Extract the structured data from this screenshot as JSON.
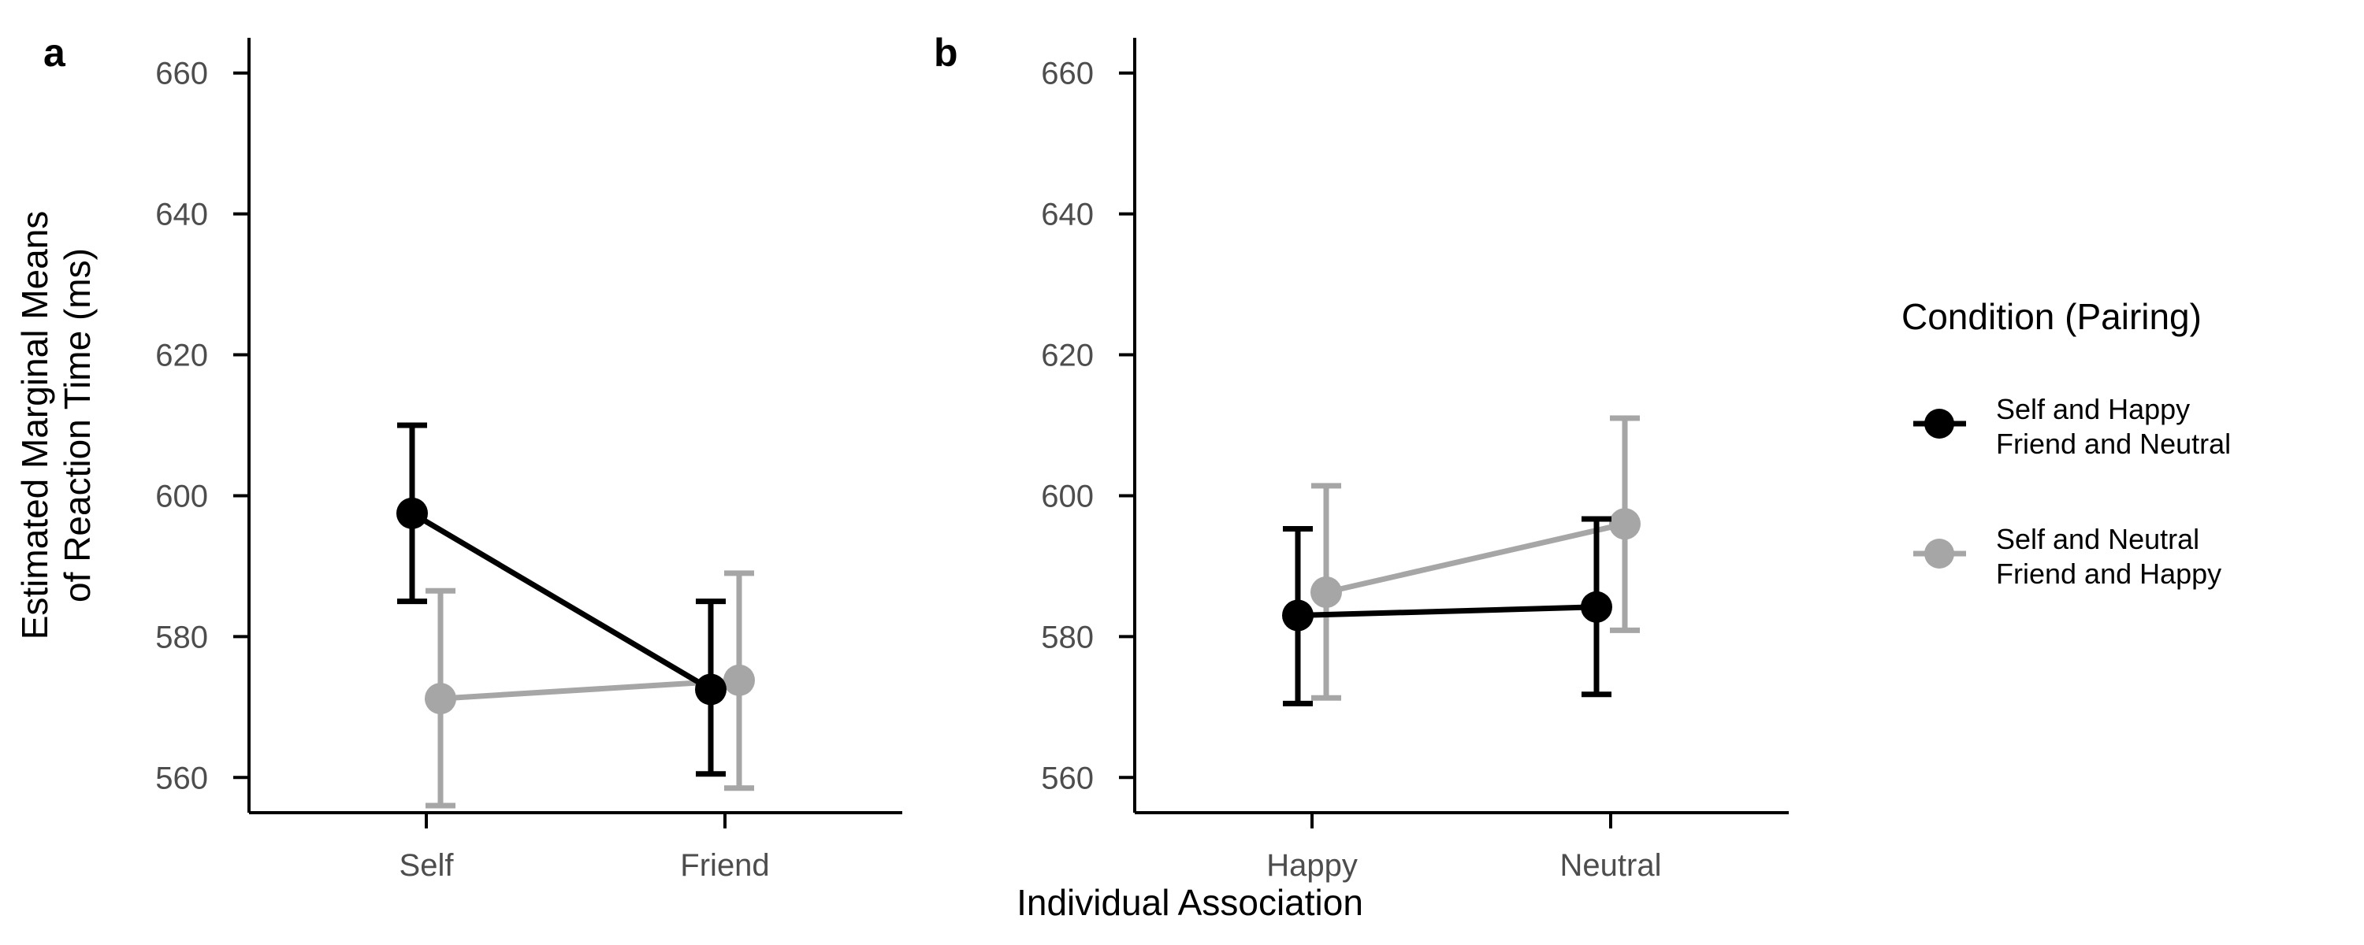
{
  "figure": {
    "xlabel": "Individual Association",
    "ylabel_line1": "Estimated Marginal Means",
    "ylabel_line2": "of Reaction Time (ms)"
  },
  "legend": {
    "title": "Condition (Pairing)",
    "items": [
      {
        "line1": "Self and Happy",
        "line2": "Friend and Neutral",
        "color": "#000000"
      },
      {
        "line1": "Self and Neutral",
        "line2": "Friend and Happy",
        "color": "#a6a6a6"
      }
    ]
  },
  "chart_data": [
    {
      "panel": "a",
      "type": "line",
      "categories": [
        "Self",
        "Friend"
      ],
      "ylim": [
        555,
        665
      ],
      "yticks": [
        560,
        580,
        600,
        620,
        640,
        660
      ],
      "series": [
        {
          "name": "Self and Happy / Friend and Neutral",
          "color": "#000000",
          "values": [
            597.5,
            572.5
          ],
          "lower": [
            585,
            560.5
          ],
          "upper": [
            610,
            585
          ]
        },
        {
          "name": "Self and Neutral / Friend and Happy",
          "color": "#a6a6a6",
          "values": [
            571.2,
            573.8
          ],
          "lower": [
            556,
            558.5
          ],
          "upper": [
            586.5,
            589
          ]
        }
      ]
    },
    {
      "panel": "b",
      "type": "line",
      "categories": [
        "Happy",
        "Neutral"
      ],
      "ylim": [
        555,
        665
      ],
      "yticks": [
        560,
        580,
        600,
        620,
        640,
        660
      ],
      "series": [
        {
          "name": "Self and Happy / Friend and Neutral",
          "color": "#000000",
          "values": [
            583,
            584.2
          ],
          "lower": [
            570.5,
            571.8
          ],
          "upper": [
            595.3,
            596.7
          ]
        },
        {
          "name": "Self and Neutral / Friend and Happy",
          "color": "#a6a6a6",
          "values": [
            586.3,
            596
          ],
          "lower": [
            571.3,
            580.9
          ],
          "upper": [
            601.4,
            611
          ]
        }
      ]
    }
  ]
}
